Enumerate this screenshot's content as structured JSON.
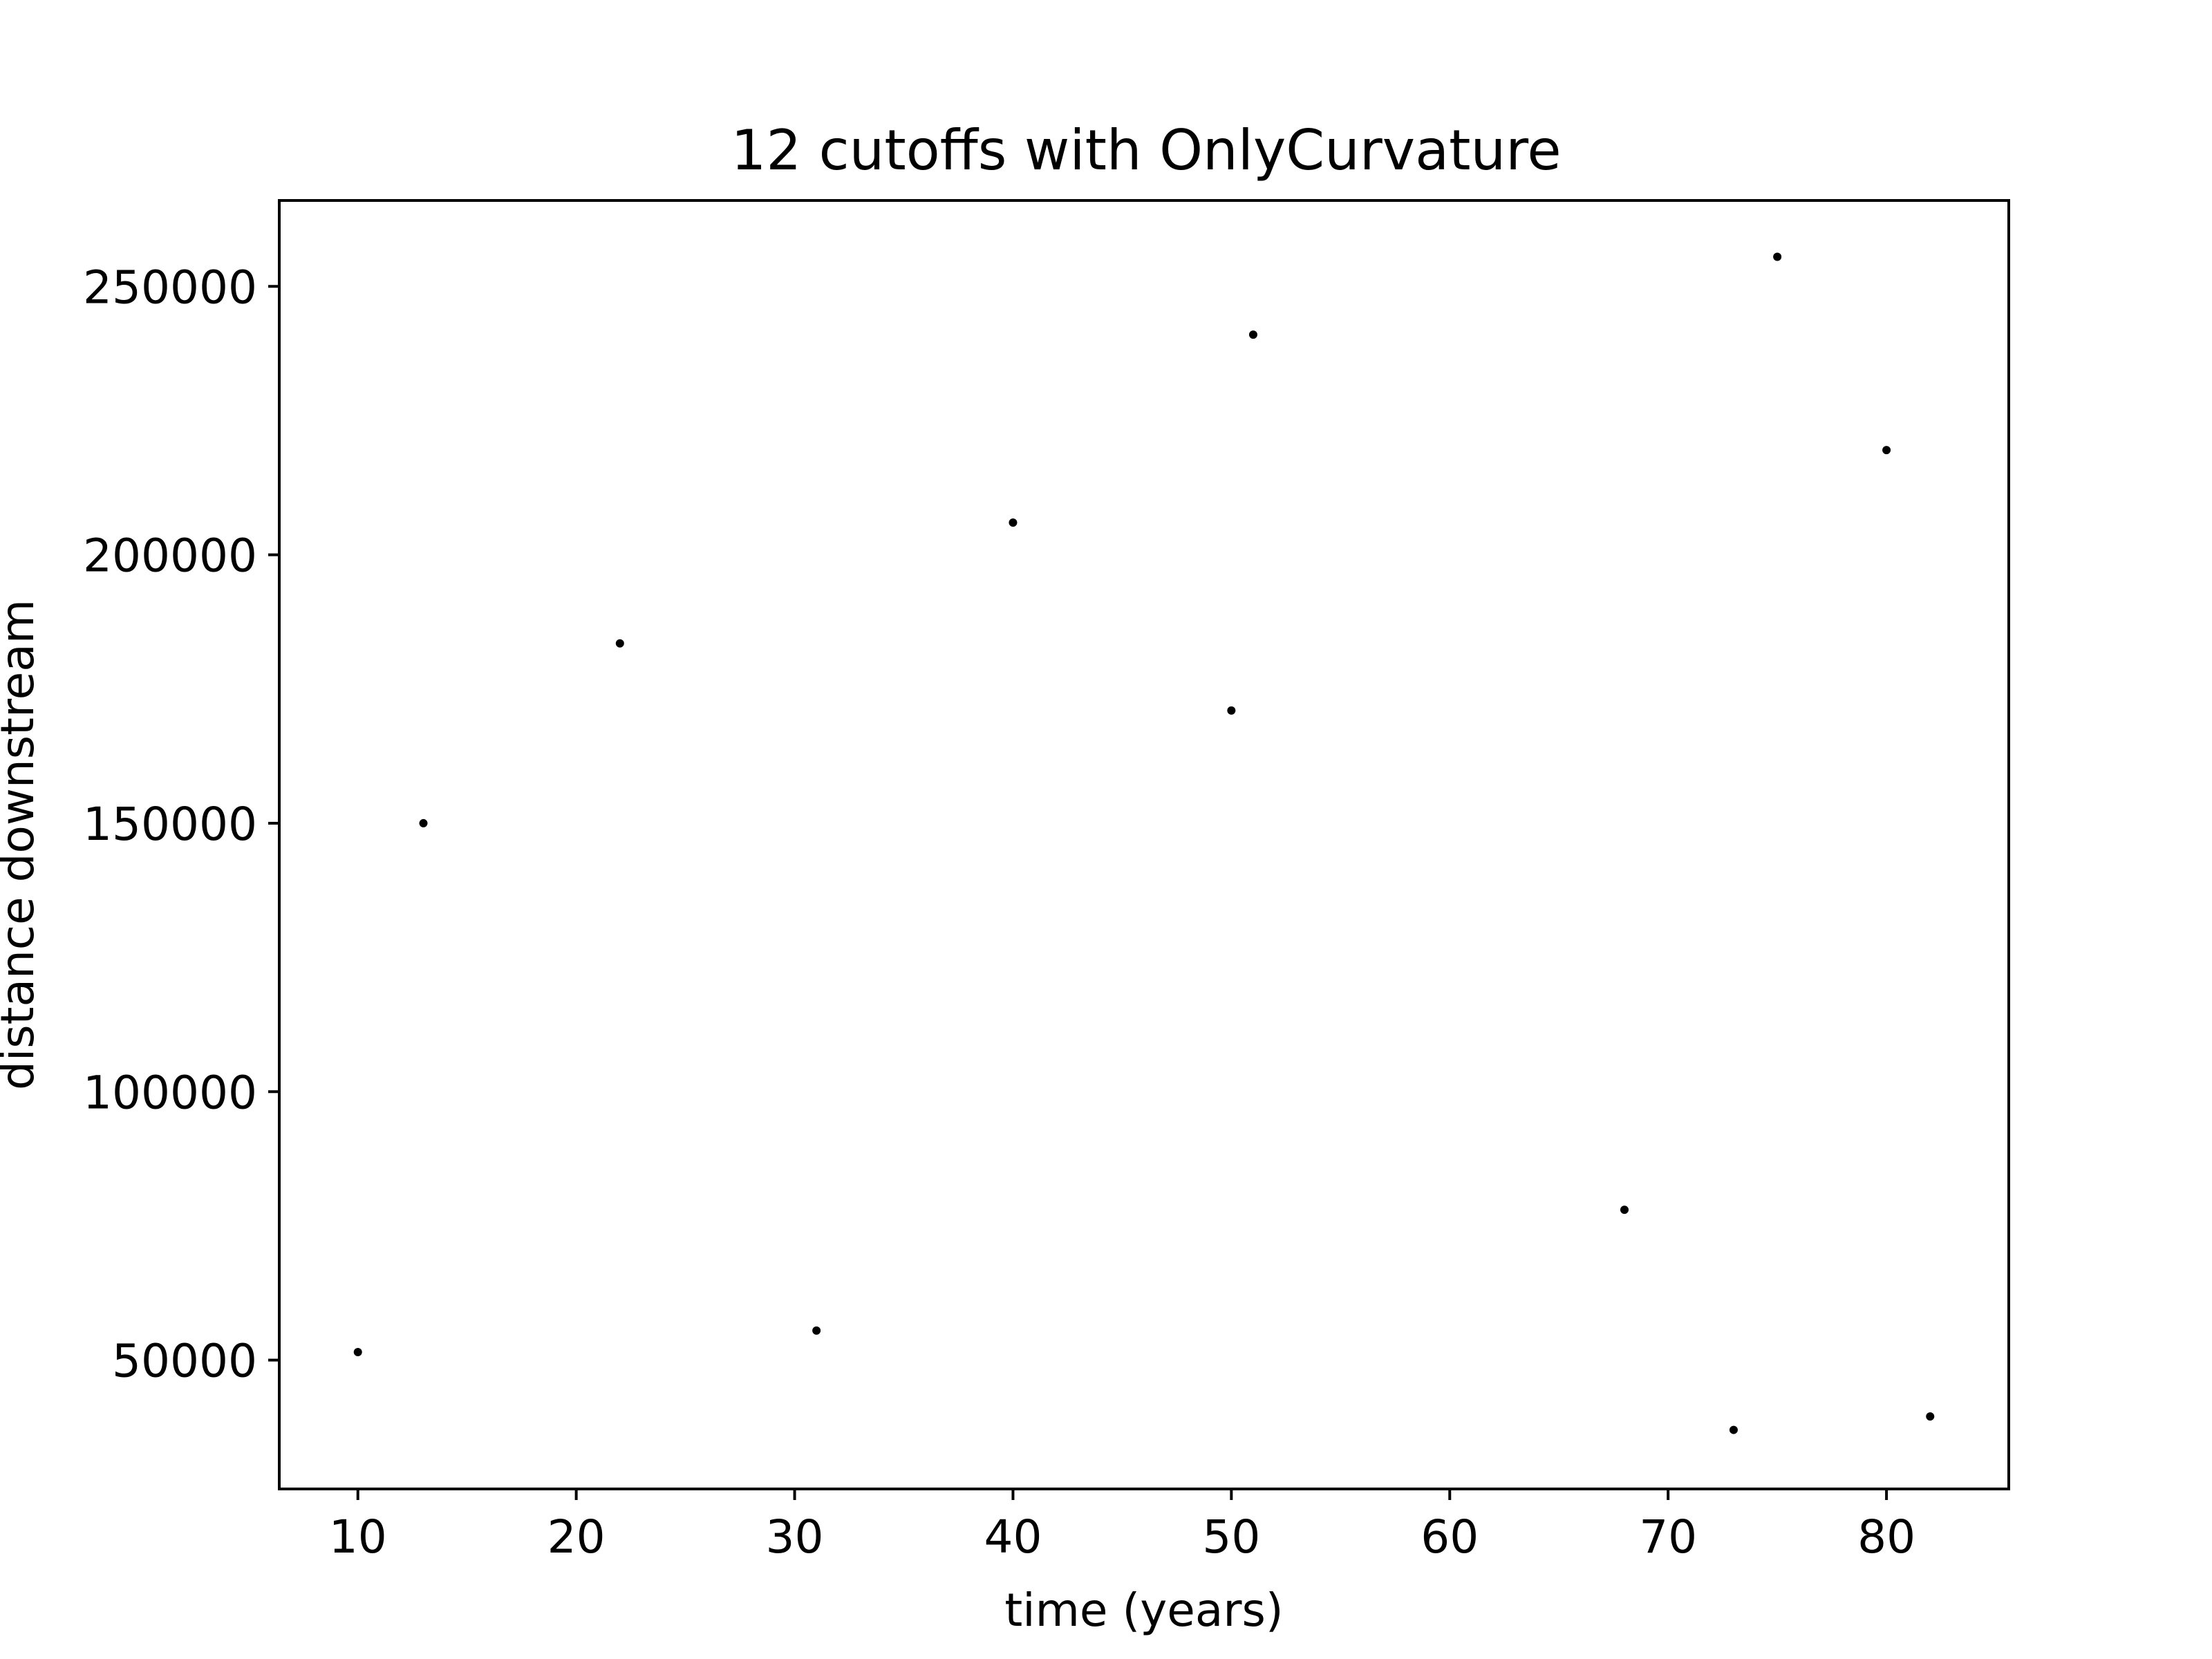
{
  "chart_data": {
    "type": "scatter",
    "title": "12 cutoffs with OnlyCurvature",
    "xlabel": "time (years)",
    "ylabel": "distance downstream",
    "xlim": [
      6.4,
      85.6
    ],
    "ylim": [
      26000,
      266000
    ],
    "xticks": [
      10,
      20,
      30,
      40,
      50,
      60,
      70,
      80
    ],
    "yticks": [
      50000,
      100000,
      150000,
      200000,
      250000
    ],
    "grid": false,
    "marker_color": "#000000",
    "points": [
      {
        "x": 10,
        "y": 51500
      },
      {
        "x": 13,
        "y": 150000
      },
      {
        "x": 22,
        "y": 183500
      },
      {
        "x": 31,
        "y": 55500
      },
      {
        "x": 40,
        "y": 206000
      },
      {
        "x": 50,
        "y": 171000
      },
      {
        "x": 51,
        "y": 241000
      },
      {
        "x": 68,
        "y": 78000
      },
      {
        "x": 73,
        "y": 37000
      },
      {
        "x": 75,
        "y": 255500
      },
      {
        "x": 80,
        "y": 219500
      },
      {
        "x": 82,
        "y": 39500
      }
    ]
  }
}
